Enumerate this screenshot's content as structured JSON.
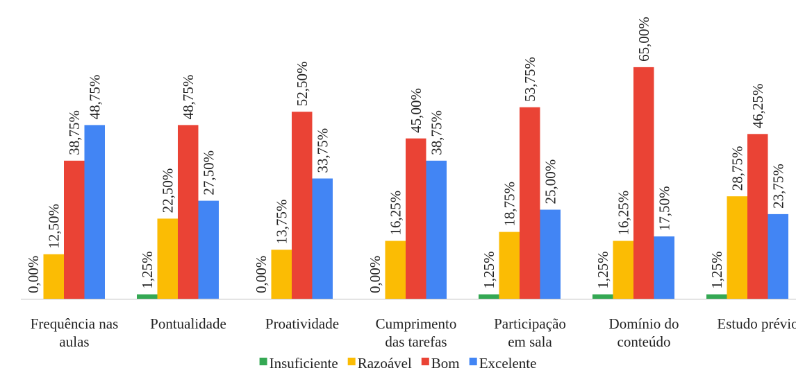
{
  "chart_data": {
    "type": "bar",
    "title": "",
    "xlabel": "",
    "ylabel": "",
    "ylim": [
      0,
      65
    ],
    "grid": false,
    "legend_position": "bottom",
    "categories": [
      "Frequência nas aulas",
      "Pontualidade",
      "Proatividade",
      "Cumprimento das tarefas",
      "Participação em sala",
      "Domínio do conteúdo",
      "Estudo prévio"
    ],
    "category_label_lines": [
      [
        "Frequência nas",
        "aulas"
      ],
      [
        "Pontualidade"
      ],
      [
        "Proatividade"
      ],
      [
        "Cumprimento",
        "das tarefas"
      ],
      [
        "Participação",
        "em sala"
      ],
      [
        "Domínio do",
        "conteúdo"
      ],
      [
        "Estudo prévio"
      ]
    ],
    "series": [
      {
        "name": "Insuficiente",
        "color": "#34a853",
        "values": [
          0,
          1.25,
          0,
          0,
          1.25,
          1.25,
          1.25
        ],
        "labels": [
          "0,00%",
          "1,25%",
          "0,00%",
          "0,00%",
          "1,25%",
          "1,25%",
          "1,25%"
        ]
      },
      {
        "name": "Razoável",
        "color": "#fbbc04",
        "values": [
          12.5,
          22.5,
          13.75,
          16.25,
          18.75,
          16.25,
          28.75
        ],
        "labels": [
          "12,50%",
          "22,50%",
          "13,75%",
          "16,25%",
          "18,75%",
          "16,25%",
          "28,75%"
        ]
      },
      {
        "name": "Bom",
        "color": "#ea4335",
        "values": [
          38.75,
          48.75,
          52.5,
          45,
          53.75,
          65,
          46.25
        ],
        "labels": [
          "38,75%",
          "48,75%",
          "52,50%",
          "45,00%",
          "53,75%",
          "65,00%",
          "46,25%"
        ]
      },
      {
        "name": "Excelente",
        "color": "#4285f4",
        "values": [
          48.75,
          27.5,
          33.75,
          38.75,
          25,
          17.5,
          23.75
        ],
        "labels": [
          "48,75%",
          "27,50%",
          "33,75%",
          "38,75%",
          "25,00%",
          "17,50%",
          "23,75%"
        ]
      }
    ]
  }
}
